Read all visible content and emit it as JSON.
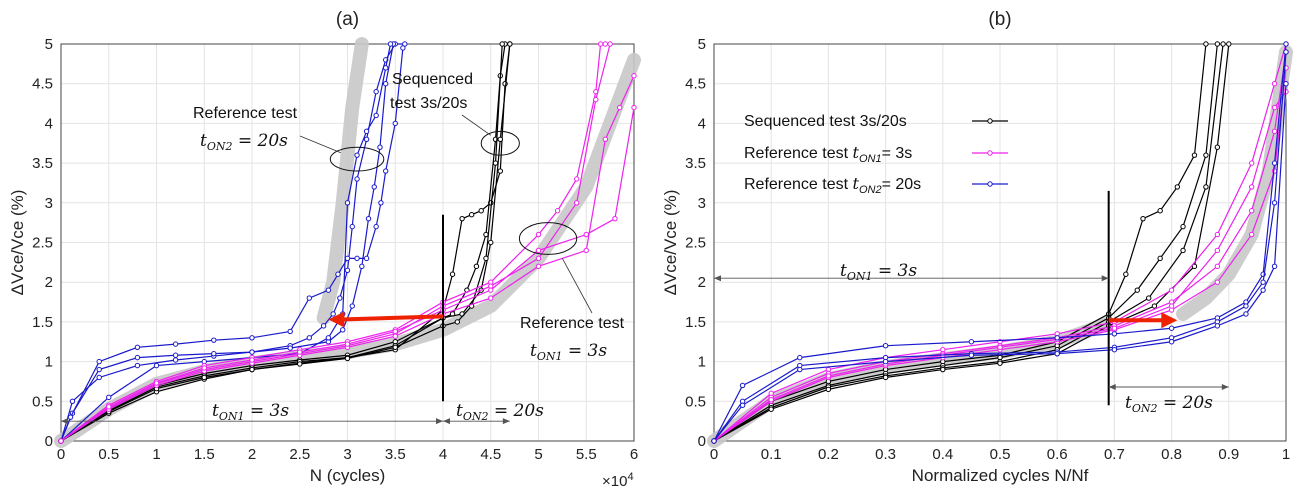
{
  "chart_data": [
    {
      "type": "line",
      "title": "(a)",
      "xlabel": "N (cycles)",
      "ylabel": "ΔVce/Vce (%)",
      "x_multiplier": "×10",
      "x_multiplier_exp": "4",
      "xlim": [
        0,
        6
      ],
      "ylim": [
        0,
        5
      ],
      "xticks": [
        "0",
        "0.5",
        "1",
        "1.5",
        "2",
        "2.5",
        "3",
        "3.5",
        "4",
        "4.5",
        "5",
        "5.5",
        "6"
      ],
      "yticks": [
        "0",
        "0.5",
        "1",
        "1.5",
        "2",
        "2.5",
        "3",
        "3.5",
        "4",
        "4.5",
        "5"
      ],
      "grid": true,
      "colors": {
        "sequenced": "#000000",
        "ref1": "#ee22ee",
        "ref2": "#1a1acc",
        "trend": "#c8c8c8",
        "arrow": "#ee2200"
      },
      "annotations": {
        "ref2_line1": "Reference test",
        "ref2_math": "t",
        "ref2_sub": "ON2",
        "ref2_rest": " = 20s",
        "seq_line1": "Sequenced",
        "seq_line2": "test  3s/20s",
        "ref1_line1": "Reference test",
        "ref1_math": "t",
        "ref1_sub": "ON1",
        "ref1_rest": " = 3s",
        "span1_math": "t",
        "span1_sub": "ON1",
        "span1_rest": " = 3s",
        "span2_math": "t",
        "span2_sub": "ON2",
        "span2_rest": " = 20s"
      },
      "series": [
        {
          "group": "ref2",
          "x": [
            0,
            0.12,
            0.4,
            0.8,
            1.2,
            1.6,
            2.0,
            2.4,
            2.6,
            2.75,
            2.85,
            2.92,
            3.0,
            3.05,
            3.1,
            3.2,
            3.3,
            3.4,
            3.5,
            3.6
          ],
          "y": [
            0,
            0.5,
            0.8,
            0.95,
            1.02,
            1.07,
            1.12,
            1.2,
            1.3,
            1.45,
            1.6,
            1.8,
            2.15,
            2.7,
            3.3,
            3.8,
            4.4,
            4.8,
            5.0,
            5.0
          ]
        },
        {
          "group": "ref2",
          "x": [
            0,
            0.12,
            0.4,
            0.8,
            1.2,
            1.6,
            2.0,
            2.4,
            2.8,
            2.95,
            3.05,
            3.15,
            3.22,
            3.28,
            3.34,
            3.4,
            3.48
          ],
          "y": [
            0,
            0.35,
            0.9,
            1.05,
            1.08,
            1.1,
            1.12,
            1.17,
            1.25,
            1.4,
            1.7,
            2.2,
            2.8,
            3.2,
            3.7,
            4.5,
            5.0
          ]
        },
        {
          "group": "ref2",
          "x": [
            0,
            0.1,
            0.4,
            0.8,
            1.2,
            1.6,
            2.0,
            2.4,
            2.6,
            2.8,
            2.9,
            3.0,
            3.1,
            3.2,
            3.3,
            3.35,
            3.4,
            3.5,
            3.58
          ],
          "y": [
            0,
            0.3,
            1.0,
            1.18,
            1.22,
            1.27,
            1.3,
            1.38,
            1.8,
            1.9,
            2.1,
            2.3,
            2.3,
            2.3,
            2.7,
            3.0,
            3.4,
            4.0,
            4.95
          ]
        },
        {
          "group": "ref2",
          "x": [
            0,
            0.5,
            1.0,
            1.5,
            2.0,
            2.5,
            2.8,
            2.95,
            3.0,
            3.1,
            3.2,
            3.3,
            3.4,
            3.45
          ],
          "y": [
            0,
            0.55,
            0.95,
            1.0,
            1.05,
            1.1,
            1.3,
            1.6,
            3.0,
            3.6,
            3.9,
            4.1,
            4.7,
            5.0
          ]
        },
        {
          "group": "seq",
          "x": [
            0,
            0.5,
            1.0,
            1.5,
            2.0,
            2.5,
            3.0,
            3.5,
            4.0,
            4.1,
            4.2,
            4.3,
            4.4,
            4.5,
            4.6,
            4.65,
            4.7
          ],
          "y": [
            0,
            0.35,
            0.62,
            0.78,
            0.9,
            0.98,
            1.05,
            1.15,
            1.65,
            2.1,
            2.8,
            2.85,
            2.9,
            3.0,
            3.4,
            4.5,
            5.0
          ]
        },
        {
          "group": "seq",
          "x": [
            0,
            0.5,
            1.0,
            1.5,
            2.0,
            2.5,
            3.0,
            3.5,
            4.0,
            4.1,
            4.25,
            4.35,
            4.45,
            4.55,
            4.6,
            4.65
          ],
          "y": [
            0,
            0.4,
            0.7,
            0.85,
            0.95,
            1.02,
            1.08,
            1.25,
            1.55,
            1.6,
            1.9,
            2.2,
            2.6,
            3.8,
            4.6,
            5.0
          ]
        },
        {
          "group": "seq",
          "x": [
            0,
            0.5,
            1.0,
            1.5,
            2.0,
            2.5,
            3.0,
            3.5,
            4.0,
            4.2,
            4.4,
            4.5,
            4.6,
            4.7
          ],
          "y": [
            0,
            0.38,
            0.68,
            0.82,
            0.92,
            1.0,
            1.05,
            1.2,
            1.55,
            1.6,
            1.9,
            2.5,
            3.8,
            5.0
          ]
        },
        {
          "group": "seq",
          "x": [
            0,
            0.5,
            1.0,
            1.5,
            2.0,
            2.5,
            3.0,
            3.5,
            4.0,
            4.15,
            4.3,
            4.45,
            4.55,
            4.62
          ],
          "y": [
            0,
            0.37,
            0.66,
            0.8,
            0.9,
            0.97,
            1.04,
            1.18,
            1.45,
            1.5,
            1.7,
            2.3,
            3.5,
            5.0
          ]
        },
        {
          "group": "ref1",
          "x": [
            0,
            0.5,
            1.0,
            1.5,
            2.0,
            2.5,
            3.0,
            3.5,
            4.0,
            4.5,
            5.0,
            5.2,
            5.4,
            5.6,
            5.65,
            5.7
          ],
          "y": [
            0,
            0.45,
            0.75,
            0.95,
            1.05,
            1.15,
            1.25,
            1.4,
            1.75,
            2.0,
            2.6,
            2.9,
            3.3,
            4.4,
            5.0,
            5.0
          ]
        },
        {
          "group": "ref1",
          "x": [
            0,
            0.5,
            1.0,
            1.5,
            2.0,
            2.5,
            3.0,
            3.5,
            4.0,
            4.5,
            5.0,
            5.4,
            5.6,
            5.75
          ],
          "y": [
            0,
            0.42,
            0.72,
            0.9,
            1.0,
            1.1,
            1.2,
            1.35,
            1.7,
            1.95,
            2.3,
            3.0,
            4.3,
            5.0
          ]
        },
        {
          "group": "ref1",
          "x": [
            0,
            0.5,
            1.0,
            1.5,
            2.0,
            2.5,
            3.0,
            3.5,
            4.0,
            4.5,
            5.0,
            5.5,
            5.7,
            5.85,
            6.0
          ],
          "y": [
            0,
            0.4,
            0.7,
            0.88,
            0.98,
            1.08,
            1.18,
            1.32,
            1.6,
            1.8,
            2.2,
            2.4,
            3.8,
            4.2,
            4.6
          ]
        },
        {
          "group": "ref1",
          "x": [
            0,
            0.5,
            1.0,
            1.5,
            2.0,
            2.5,
            3.0,
            3.5,
            4.0,
            4.5,
            5.0,
            5.5,
            5.8,
            6.0
          ],
          "y": [
            0,
            0.43,
            0.73,
            0.92,
            1.02,
            1.12,
            1.22,
            1.38,
            1.65,
            1.9,
            2.4,
            2.6,
            2.8,
            4.2
          ]
        }
      ],
      "trend": {
        "x": [
          0,
          0.5,
          1.0,
          1.5,
          2.0,
          2.5,
          3.0,
          3.5,
          4.0,
          4.5,
          5.0,
          5.5,
          6.0
        ],
        "y": [
          0,
          0.4,
          0.72,
          0.88,
          0.98,
          1.06,
          1.12,
          1.22,
          1.4,
          1.7,
          2.3,
          3.2,
          4.8
        ]
      },
      "trend2": {
        "x": [
          2.75,
          2.85,
          2.95,
          3.05,
          3.15
        ],
        "y": [
          1.55,
          2.0,
          3.0,
          4.2,
          5.0
        ]
      },
      "arrow": {
        "from": [
          4.0,
          1.57
        ],
        "to": [
          2.8,
          1.53
        ]
      },
      "vline_x": 4.0,
      "vline_y": [
        0.5,
        2.85
      ],
      "span1": {
        "x0": 0,
        "x1": 4.0,
        "y": 0.25
      },
      "span2": {
        "x0": 4.0,
        "x1": 4.7,
        "y": 0.25
      },
      "ellipses": [
        {
          "cx": 3.1,
          "cy": 3.55,
          "rx": 0.28,
          "ry": 0.15
        },
        {
          "cx": 4.6,
          "cy": 3.75,
          "rx": 0.2,
          "ry": 0.15
        },
        {
          "cx": 5.1,
          "cy": 2.55,
          "rx": 0.3,
          "ry": 0.2
        }
      ]
    },
    {
      "type": "line",
      "title": "(b)",
      "xlabel": "Normalized cycles N/Nf",
      "ylabel": "ΔVce/Vce (%)",
      "xlim": [
        0,
        1
      ],
      "ylim": [
        0,
        5
      ],
      "xticks": [
        "0",
        "0.1",
        "0.2",
        "0.3",
        "0.4",
        "0.5",
        "0.6",
        "0.7",
        "0.8",
        "0.9",
        "1"
      ],
      "yticks": [
        "0",
        "0.5",
        "1",
        "1.5",
        "2",
        "2.5",
        "3",
        "3.5",
        "4",
        "4.5",
        "5"
      ],
      "grid": true,
      "legend": [
        {
          "label": "Sequenced test  3s/20s",
          "color": "#000000",
          "math": "",
          "sub": ""
        },
        {
          "label": "Reference test ",
          "color": "#ee22ee",
          "math": "t",
          "sub": "ON1",
          "rest": "= 3s"
        },
        {
          "label": "Reference test ",
          "color": "#1a1acc",
          "math": "t",
          "sub": "ON2",
          "rest": "= 20s"
        }
      ],
      "annotations": {
        "span1_math": "t",
        "span1_sub": "ON1",
        "span1_rest": " = 3s",
        "span2_math": "t",
        "span2_sub": "ON2",
        "span2_rest": " = 20s"
      },
      "series": [
        {
          "group": "seq",
          "x": [
            0,
            0.1,
            0.2,
            0.3,
            0.4,
            0.5,
            0.6,
            0.69,
            0.72,
            0.75,
            0.78,
            0.81,
            0.84,
            0.86
          ],
          "y": [
            0,
            0.5,
            0.75,
            0.9,
            1.0,
            1.08,
            1.25,
            1.6,
            2.1,
            2.8,
            2.9,
            3.2,
            3.6,
            5.0
          ]
        },
        {
          "group": "seq",
          "x": [
            0,
            0.1,
            0.2,
            0.3,
            0.4,
            0.5,
            0.6,
            0.69,
            0.74,
            0.78,
            0.82,
            0.86,
            0.88
          ],
          "y": [
            0,
            0.45,
            0.7,
            0.85,
            0.95,
            1.05,
            1.2,
            1.55,
            1.9,
            2.3,
            2.7,
            3.6,
            5.0
          ]
        },
        {
          "group": "seq",
          "x": [
            0,
            0.1,
            0.2,
            0.3,
            0.4,
            0.5,
            0.6,
            0.69,
            0.76,
            0.82,
            0.86,
            0.89
          ],
          "y": [
            0,
            0.42,
            0.68,
            0.82,
            0.92,
            1.0,
            1.15,
            1.5,
            1.8,
            2.4,
            3.2,
            5.0
          ]
        },
        {
          "group": "seq",
          "x": [
            0,
            0.1,
            0.2,
            0.3,
            0.4,
            0.5,
            0.6,
            0.69,
            0.77,
            0.84,
            0.88,
            0.9
          ],
          "y": [
            0,
            0.4,
            0.65,
            0.8,
            0.9,
            0.98,
            1.1,
            1.45,
            1.7,
            2.2,
            3.7,
            5.0
          ]
        },
        {
          "group": "ref1",
          "x": [
            0,
            0.1,
            0.2,
            0.3,
            0.4,
            0.5,
            0.6,
            0.7,
            0.8,
            0.88,
            0.94,
            0.98,
            1.0
          ],
          "y": [
            0,
            0.6,
            0.9,
            1.05,
            1.15,
            1.25,
            1.35,
            1.5,
            1.9,
            2.6,
            3.5,
            4.5,
            5.0
          ]
        },
        {
          "group": "ref1",
          "x": [
            0,
            0.1,
            0.2,
            0.3,
            0.4,
            0.5,
            0.6,
            0.7,
            0.8,
            0.88,
            0.94,
            0.98,
            1.0
          ],
          "y": [
            0,
            0.55,
            0.85,
            1.0,
            1.1,
            1.2,
            1.3,
            1.45,
            1.75,
            2.2,
            2.9,
            3.9,
            4.9
          ]
        },
        {
          "group": "ref1",
          "x": [
            0,
            0.1,
            0.2,
            0.3,
            0.4,
            0.5,
            0.6,
            0.7,
            0.8,
            0.88,
            0.94,
            0.98,
            1.0
          ],
          "y": [
            0,
            0.5,
            0.8,
            0.95,
            1.05,
            1.15,
            1.25,
            1.4,
            1.65,
            2.0,
            2.6,
            3.4,
            4.7
          ]
        },
        {
          "group": "ref1",
          "x": [
            0,
            0.1,
            0.2,
            0.3,
            0.4,
            0.5,
            0.6,
            0.7,
            0.8,
            0.88,
            0.94,
            0.98,
            1.0
          ],
          "y": [
            0,
            0.52,
            0.82,
            0.97,
            1.08,
            1.18,
            1.28,
            1.42,
            1.7,
            2.4,
            3.2,
            4.2,
            4.4
          ]
        },
        {
          "group": "ref2",
          "x": [
            0,
            0.05,
            0.15,
            0.3,
            0.45,
            0.6,
            0.7,
            0.8,
            0.88,
            0.93,
            0.96,
            0.98,
            1.0
          ],
          "y": [
            0,
            0.7,
            1.05,
            1.2,
            1.25,
            1.3,
            1.35,
            1.42,
            1.55,
            1.75,
            2.1,
            3.5,
            5.0
          ]
        },
        {
          "group": "ref2",
          "x": [
            0,
            0.05,
            0.15,
            0.3,
            0.45,
            0.6,
            0.7,
            0.8,
            0.88,
            0.93,
            0.96,
            0.98,
            1.0
          ],
          "y": [
            0,
            0.5,
            0.95,
            1.05,
            1.1,
            1.12,
            1.18,
            1.3,
            1.5,
            1.7,
            2.0,
            3.0,
            4.9
          ]
        },
        {
          "group": "ref2",
          "x": [
            0,
            0.05,
            0.15,
            0.3,
            0.45,
            0.6,
            0.7,
            0.8,
            0.88,
            0.93,
            0.96,
            0.98,
            1.0
          ],
          "y": [
            0,
            0.45,
            0.9,
            1.0,
            1.08,
            1.1,
            1.15,
            1.25,
            1.45,
            1.6,
            1.9,
            2.2,
            4.5
          ]
        }
      ],
      "trend": {
        "x": [
          0,
          0.1,
          0.2,
          0.3,
          0.4,
          0.5,
          0.6,
          0.69
        ],
        "y": [
          0,
          0.5,
          0.78,
          0.93,
          1.03,
          1.12,
          1.25,
          1.48
        ]
      },
      "trend2": {
        "x": [
          0.82,
          0.86,
          0.9,
          0.94,
          0.97,
          1.0
        ],
        "y": [
          1.6,
          1.8,
          2.1,
          2.6,
          3.4,
          4.9
        ]
      },
      "arrow": {
        "from": [
          0.69,
          1.52
        ],
        "to": [
          0.81,
          1.52
        ]
      },
      "vline_x": 0.69,
      "vline_y": [
        0.45,
        3.15
      ],
      "span1": {
        "x0": 0,
        "x1": 0.69,
        "y": 2.05
      },
      "span2": {
        "x0": 0.69,
        "x1": 0.9,
        "y": 0.68
      }
    }
  ]
}
